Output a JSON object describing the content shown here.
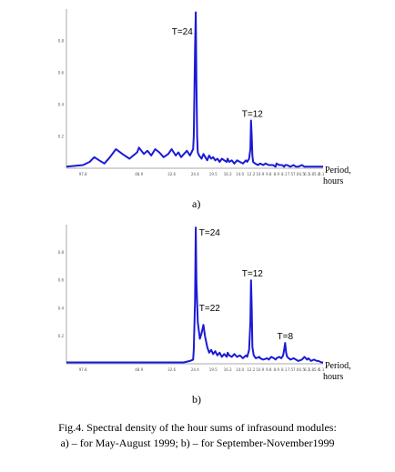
{
  "caption": {
    "line1": "Fig.4. Spectral density of  the hour sums of infrasound modules:",
    "line2": "a) – for  May-August 1999;  b) – for September-November1999"
  },
  "chart_data": [
    {
      "type": "line",
      "panel_label": "a)",
      "xlabel": [
        "Period,",
        "hours"
      ],
      "title": "",
      "ylabel": "",
      "x_axis_direction": "period decreasing left to right",
      "ylim": [
        0,
        1
      ],
      "grid": false,
      "color": "#1a1ad6",
      "yticks": [
        "0.8",
        "0.6",
        "0.4",
        "0.2"
      ],
      "xticks": [
        "97.8",
        "48.9",
        "32.6",
        "24.4",
        "19.5",
        "16.3",
        "14.0",
        "12.2",
        "10.9",
        "9.8",
        "8.9",
        "8.1",
        "7.5",
        "7.0",
        "6.5",
        "6.1",
        "5.8",
        "5.4",
        "5.1"
      ],
      "annotations": [
        {
          "text": "T=24",
          "period": 24
        },
        {
          "text": "T=12",
          "period": 12
        }
      ],
      "series": [
        {
          "x": [
            120,
            97.8,
            90,
            85,
            80,
            75,
            70,
            65,
            60,
            55,
            50,
            48.9,
            46,
            44,
            42,
            40,
            38,
            36,
            34,
            32.6,
            31,
            30,
            29,
            28,
            27,
            26,
            25,
            24.8,
            24.4,
            24.2,
            24,
            23.8,
            23.6,
            23.2,
            22.5,
            22,
            21.5,
            21,
            20.5,
            20,
            19.5,
            19,
            18.5,
            18,
            17.5,
            17,
            16.5,
            16.3,
            16,
            15.5,
            15,
            14.5,
            14,
            13.5,
            13,
            12.8,
            12.5,
            12.3,
            12.2,
            12.1,
            12,
            11.9,
            11.6,
            11.2,
            10.9,
            10.5,
            10.2,
            9.8,
            9.6,
            9.3,
            9,
            8.9,
            8.6,
            8.3,
            8.1,
            8,
            7.8,
            7.5,
            7.2,
            7,
            6.8,
            6.5,
            6.3,
            6.1,
            5.9,
            5.8,
            5.6,
            5.4,
            5.3,
            5.1,
            5
          ],
          "y": [
            0.01,
            0.02,
            0.04,
            0.07,
            0.05,
            0.03,
            0.07,
            0.12,
            0.09,
            0.06,
            0.1,
            0.13,
            0.09,
            0.11,
            0.08,
            0.12,
            0.1,
            0.07,
            0.09,
            0.12,
            0.08,
            0.1,
            0.07,
            0.09,
            0.11,
            0.08,
            0.12,
            0.2,
            0.75,
            0.98,
            0.55,
            0.2,
            0.1,
            0.08,
            0.06,
            0.09,
            0.07,
            0.05,
            0.08,
            0.06,
            0.07,
            0.05,
            0.06,
            0.04,
            0.06,
            0.05,
            0.04,
            0.06,
            0.04,
            0.05,
            0.03,
            0.05,
            0.04,
            0.03,
            0.05,
            0.04,
            0.06,
            0.12,
            0.3,
            0.2,
            0.08,
            0.04,
            0.03,
            0.02,
            0.03,
            0.02,
            0.03,
            0.02,
            0.02,
            0.02,
            0.01,
            0.03,
            0.02,
            0.02,
            0.01,
            0.02,
            0.02,
            0.01,
            0.02,
            0.01,
            0.01,
            0.02,
            0.01,
            0.01,
            0.01,
            0.01,
            0.01,
            0.01,
            0.01,
            0.01,
            0.01
          ]
        }
      ]
    },
    {
      "type": "line",
      "panel_label": "b)",
      "xlabel": [
        "Period,",
        "hours"
      ],
      "title": "",
      "ylabel": "",
      "x_axis_direction": "period decreasing left to right",
      "ylim": [
        0,
        1
      ],
      "grid": false,
      "color": "#1a1ad6",
      "yticks": [
        "0.8",
        "0.6",
        "0.4",
        "0.2"
      ],
      "xticks": [
        "97.8",
        "48.9",
        "32.6",
        "24.4",
        "19.5",
        "16.3",
        "14.0",
        "12.2",
        "10.9",
        "9.8",
        "8.9",
        "8.1",
        "7.5",
        "7.0",
        "6.5",
        "6.1",
        "5.8",
        "5.4",
        "5.1"
      ],
      "annotations": [
        {
          "text": "T=24",
          "period": 24
        },
        {
          "text": "T=22",
          "period": 22
        },
        {
          "text": "T=12",
          "period": 12
        },
        {
          "text": "T=8",
          "period": 8
        }
      ],
      "series": [
        {
          "x": [
            120,
            97.8,
            90,
            80,
            70,
            60,
            50,
            48.9,
            44,
            40,
            36,
            32.6,
            30,
            28,
            26,
            25,
            24.8,
            24.4,
            24.2,
            24,
            23.6,
            23,
            22.5,
            22,
            21.6,
            21,
            20.5,
            20,
            19.5,
            19,
            18.5,
            18,
            17.5,
            17,
            16.5,
            16.3,
            16,
            15.5,
            15,
            14.5,
            14,
            13.5,
            13,
            12.8,
            12.5,
            12.3,
            12.2,
            12.1,
            12,
            11.8,
            11.5,
            11,
            10.9,
            10.5,
            10,
            9.8,
            9.5,
            9.2,
            9,
            8.9,
            8.6,
            8.4,
            8.2,
            8.1,
            8,
            7.9,
            7.8,
            7.5,
            7.2,
            7,
            6.8,
            6.5,
            6.3,
            6.1,
            6,
            5.8,
            5.6,
            5.4,
            5.3,
            5.1,
            5
          ],
          "y": [
            0.01,
            0.01,
            0.01,
            0.01,
            0.01,
            0.01,
            0.01,
            0.01,
            0.01,
            0.01,
            0.01,
            0.01,
            0.01,
            0.01,
            0.02,
            0.03,
            0.1,
            0.45,
            0.98,
            0.6,
            0.3,
            0.18,
            0.22,
            0.28,
            0.2,
            0.12,
            0.08,
            0.1,
            0.07,
            0.09,
            0.06,
            0.08,
            0.05,
            0.07,
            0.05,
            0.08,
            0.06,
            0.05,
            0.07,
            0.05,
            0.06,
            0.04,
            0.06,
            0.05,
            0.1,
            0.3,
            0.6,
            0.4,
            0.12,
            0.06,
            0.04,
            0.05,
            0.04,
            0.03,
            0.04,
            0.03,
            0.05,
            0.04,
            0.03,
            0.04,
            0.05,
            0.04,
            0.06,
            0.1,
            0.15,
            0.08,
            0.05,
            0.03,
            0.04,
            0.03,
            0.02,
            0.03,
            0.05,
            0.03,
            0.04,
            0.02,
            0.03,
            0.02,
            0.02,
            0.01,
            0.01
          ]
        }
      ]
    }
  ]
}
